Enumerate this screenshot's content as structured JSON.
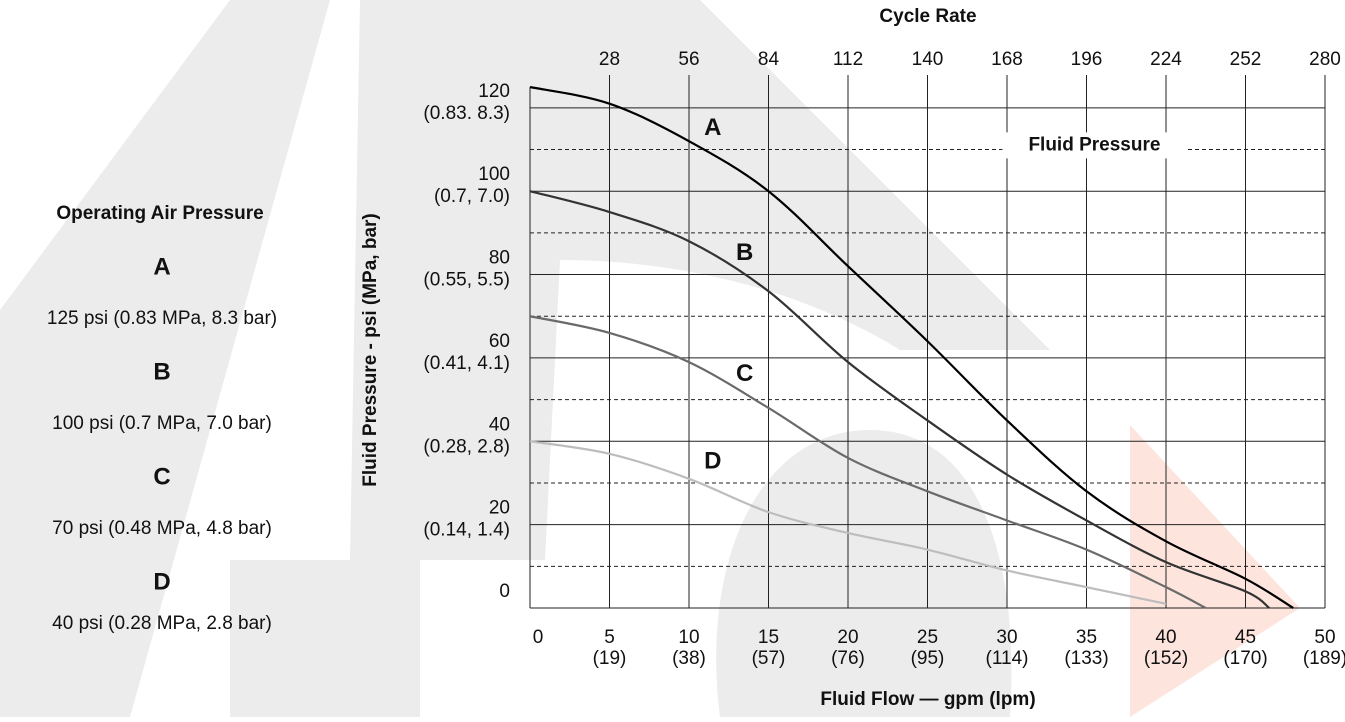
{
  "chart_data": {
    "type": "line",
    "title": "Cycle Rate",
    "x_label": "Fluid Flow — gpm (lpm)",
    "y_label": "Fluid Pressure - psi (MPa, bar)",
    "xlim": [
      0,
      50
    ],
    "xticks": [
      0,
      5,
      10,
      15,
      20,
      25,
      30,
      35,
      40,
      45,
      50
    ],
    "x_sublabels": [
      null,
      "(19)",
      "(38)",
      "(57)",
      "(76)",
      "(95)",
      "(114)",
      "(133)",
      "(152)",
      "(170)",
      "(189)"
    ],
    "x2lim": [
      0,
      280
    ],
    "x2ticks": [
      28,
      56,
      84,
      112,
      140,
      168,
      196,
      224,
      252,
      280
    ],
    "ylim": [
      0,
      125
    ],
    "yticks": [
      0,
      20,
      40,
      60,
      80,
      100,
      120
    ],
    "y_sublabels": [
      null,
      "(0.14, 1.4)",
      "(0.28, 2.8)",
      "(0.41, 4.1)",
      "(0.55, 5.5)",
      "(0.7, 7.0)",
      "(0.83. 8.3)"
    ],
    "y_minor_ticks": [
      10,
      30,
      50,
      70,
      90,
      110
    ],
    "grid": true,
    "series": [
      {
        "name": "A",
        "color": "#000000",
        "x": [
          0,
          5,
          10,
          15,
          20,
          25,
          30,
          35,
          40,
          45,
          48
        ],
        "values": [
          125,
          121,
          112,
          100,
          82,
          64,
          45,
          28,
          16,
          7,
          0
        ]
      },
      {
        "name": "B",
        "color": "#333333",
        "x": [
          0,
          5,
          10,
          15,
          20,
          25,
          30,
          35,
          40,
          45,
          46.5
        ],
        "values": [
          100,
          95,
          88,
          76,
          59,
          45,
          32,
          21,
          11,
          4,
          0
        ]
      },
      {
        "name": "C",
        "color": "#6a6a6a",
        "x": [
          0,
          5,
          10,
          15,
          20,
          25,
          30,
          35,
          40,
          42.5
        ],
        "values": [
          70,
          66,
          59,
          48,
          36,
          28,
          21,
          14,
          5,
          0
        ]
      },
      {
        "name": "D",
        "color": "#bdbdbd",
        "x": [
          0,
          5,
          10,
          15,
          20,
          25,
          30,
          35,
          40
        ],
        "values": [
          40,
          37,
          31,
          23,
          18,
          14,
          9,
          5,
          1
        ]
      }
    ],
    "annotations": [
      {
        "text": "A",
        "x": 11.5,
        "y": 115
      },
      {
        "text": "B",
        "x": 13.5,
        "y": 85
      },
      {
        "text": "C",
        "x": 13.5,
        "y": 56
      },
      {
        "text": "D",
        "x": 11.5,
        "y": 35
      },
      {
        "text": "Fluid Pressure",
        "x": 35.5,
        "y": 111
      }
    ],
    "legend": {
      "title": "Operating Air Pressure",
      "items": [
        "125 psi (0.83 MPa, 8.3 bar)",
        "100 psi (0.7 MPa, 7.0 bar)",
        "70 psi (0.48 MPa, 4.8 bar)",
        "40 psi (0.28 MPa, 2.8 bar)"
      ]
    }
  }
}
